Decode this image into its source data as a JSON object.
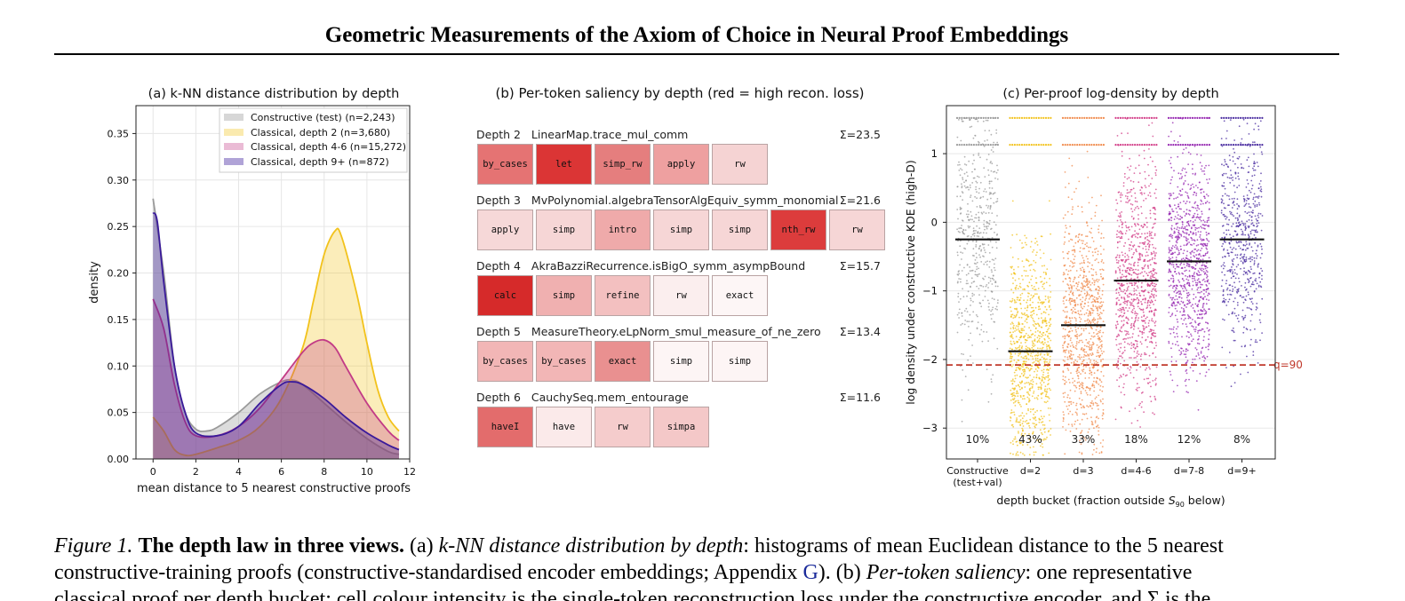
{
  "page": {
    "title": "Geometric Measurements of the Axiom of Choice in Neural Proof Embeddings"
  },
  "panel_a": {
    "title": "(a) k-NN distance distribution by depth",
    "xlabel": "mean distance to 5 nearest constructive proofs",
    "ylabel": "density",
    "xticks": [
      "0",
      "2",
      "4",
      "6",
      "8",
      "10",
      "12"
    ],
    "yticks": [
      "0.00",
      "0.05",
      "0.10",
      "0.15",
      "0.20",
      "0.25",
      "0.30",
      "0.35"
    ],
    "legend": [
      "Constructive (test) (n=2,243)",
      "Classical, depth 2 (n=3,680)",
      "Classical, depth 4-6 (n=15,272)",
      "Classical, depth 9+ (n=872)"
    ]
  },
  "panel_b": {
    "title": "(b) Per-token saliency by depth (red = high recon. loss)",
    "rows": [
      {
        "header": "Depth 2   LinearMap.trace_mul_comm",
        "sum": "Σ=23.5",
        "tokens": [
          {
            "label": "by_cases",
            "color": "#e57373"
          },
          {
            "label": "let",
            "color": "#db3535"
          },
          {
            "label": "simp_rw",
            "color": "#e57e7e"
          },
          {
            "label": "apply",
            "color": "#eea0a0"
          },
          {
            "label": "rw",
            "color": "#f5d3d3"
          }
        ]
      },
      {
        "header": "Depth 3   MvPolynomial.algebraTensorAlgEquiv_symm_monomial",
        "sum": "Σ=21.6",
        "tokens": [
          {
            "label": "apply",
            "color": "#f6d8d8"
          },
          {
            "label": "simp",
            "color": "#f6d6d6"
          },
          {
            "label": "intro",
            "color": "#efaaaa"
          },
          {
            "label": "simp",
            "color": "#f6d6d6"
          },
          {
            "label": "simp",
            "color": "#f6d6d6"
          },
          {
            "label": "nth_rw",
            "color": "#dc3c3c"
          },
          {
            "label": "rw",
            "color": "#f6d6d6"
          }
        ]
      },
      {
        "header": "Depth 4   AkraBazziRecurrence.isBigO_symm_asympBound",
        "sum": "Σ=15.7",
        "tokens": [
          {
            "label": "calc",
            "color": "#d62a2a"
          },
          {
            "label": "simp",
            "color": "#f0b0b0"
          },
          {
            "label": "refine",
            "color": "#f3c0c0"
          },
          {
            "label": "rw",
            "color": "#fbeeee"
          },
          {
            "label": "exact",
            "color": "#fdf6f6"
          }
        ]
      },
      {
        "header": "Depth 5   MeasureTheory.eLpNorm_smul_measure_of_ne_zero",
        "sum": "Σ=13.4",
        "tokens": [
          {
            "label": "by_cases",
            "color": "#f2b6b6"
          },
          {
            "label": "by_cases",
            "color": "#f2b6b6"
          },
          {
            "label": "exact",
            "color": "#e99090"
          },
          {
            "label": "simp",
            "color": "#fdf5f5"
          },
          {
            "label": "simp",
            "color": "#fdf5f5"
          }
        ]
      },
      {
        "header": "Depth 6   CauchySeq.mem_entourage",
        "sum": "Σ=11.6",
        "tokens": [
          {
            "label": "haveI",
            "color": "#e36c6c"
          },
          {
            "label": "have",
            "color": "#fbeaea"
          },
          {
            "label": "rw",
            "color": "#f5cccc"
          },
          {
            "label": "simpa",
            "color": "#f4c8c8"
          }
        ]
      }
    ]
  },
  "panel_c": {
    "title": "(c) Per-proof log-density by depth",
    "ylabel": "log density under constructive KDE (high-D)",
    "xlabel_prefix": "depth bucket  (fraction outside ",
    "xlabel_sym": "S",
    "xlabel_sub": "90",
    "xlabel_suffix": " below)",
    "threshold_label": "q=90",
    "yticks": [
      "1",
      "0",
      "−1",
      "−2",
      "−3"
    ],
    "buckets": [
      {
        "label": "Constructive",
        "label2": "(test+val)",
        "fraction": "10%",
        "median": -0.25,
        "color": "#9a9a9a"
      },
      {
        "label": "d=2",
        "label2": "",
        "fraction": "43%",
        "median": -1.88,
        "color": "#f2c21b"
      },
      {
        "label": "d=3",
        "label2": "",
        "fraction": "33%",
        "median": -1.5,
        "color": "#f08a4b"
      },
      {
        "label": "d=4-6",
        "label2": "",
        "fraction": "18%",
        "median": -0.85,
        "color": "#d23c87"
      },
      {
        "label": "d=7-8",
        "label2": "",
        "fraction": "12%",
        "median": -0.57,
        "color": "#9424b0"
      },
      {
        "label": "d=9+",
        "label2": "",
        "fraction": "8%",
        "median": -0.25,
        "color": "#4a2ca0"
      }
    ]
  },
  "caption": {
    "fig_label": "Figure 1.",
    "bold": "The depth law in three views.",
    "a_marker": "(a)",
    "a_title": "k-NN distance distribution by depth",
    "a_text": ": histograms of mean Euclidean distance to the 5 nearest",
    "line2_pre": "constructive-training proofs (constructive-standardised encoder embeddings; Appendix ",
    "appendix_link": "G",
    "line2_mid": "). (b) ",
    "b_title": "Per-token saliency",
    "b_text": ": one representative",
    "line3": "classical proof per depth bucket; cell colour intensity is the single-token reconstruction loss under the constructive encoder, and Σ is the"
  },
  "chart_data": [
    {
      "type": "area",
      "title": "(a) k-NN distance distribution by depth",
      "xlabel": "mean distance to 5 nearest constructive proofs",
      "ylabel": "density",
      "xlim": [
        -0.8,
        12
      ],
      "ylim": [
        0,
        0.38
      ],
      "grid": true,
      "legend_position": "top-right",
      "series": [
        {
          "name": "Constructive (test) (n=2,243)",
          "color": "#9a9a9a",
          "x": [
            0,
            0.5,
            1,
            1.5,
            2,
            2.5,
            3,
            4,
            5,
            6,
            6.5,
            7,
            8,
            9,
            10,
            11,
            11.5
          ],
          "y": [
            0.28,
            0.2,
            0.1,
            0.05,
            0.032,
            0.03,
            0.034,
            0.05,
            0.07,
            0.083,
            0.085,
            0.08,
            0.06,
            0.04,
            0.022,
            0.008,
            0.005
          ]
        },
        {
          "name": "Classical, depth 2 (n=3,680)",
          "color": "#f2c21b",
          "x": [
            0,
            0.5,
            1,
            1.5,
            2,
            3,
            4,
            5,
            6,
            7,
            7.5,
            8,
            8.5,
            8.8,
            9.5,
            10,
            10.5,
            11,
            11.5
          ],
          "y": [
            0.045,
            0.03,
            0.01,
            0.004,
            0.005,
            0.012,
            0.02,
            0.035,
            0.065,
            0.12,
            0.17,
            0.22,
            0.245,
            0.24,
            0.18,
            0.125,
            0.075,
            0.045,
            0.03
          ]
        },
        {
          "name": "Classical, depth 4-6 (n=15,272)",
          "color": "#c23b86",
          "x": [
            0,
            0.5,
            1,
            1.5,
            2,
            3,
            4,
            5,
            6,
            7,
            7.5,
            8,
            8.5,
            9,
            10,
            11,
            11.5
          ],
          "y": [
            0.172,
            0.14,
            0.08,
            0.04,
            0.025,
            0.025,
            0.035,
            0.055,
            0.085,
            0.115,
            0.125,
            0.128,
            0.12,
            0.1,
            0.06,
            0.03,
            0.02
          ]
        },
        {
          "name": "Classical, depth 9+ (n=872)",
          "color": "#3a1a9a",
          "x": [
            0,
            0.2,
            0.5,
            1,
            1.5,
            2,
            3,
            4,
            5,
            6,
            6.5,
            7,
            8,
            9,
            10,
            11,
            11.5
          ],
          "y": [
            0.265,
            0.255,
            0.19,
            0.1,
            0.05,
            0.028,
            0.025,
            0.035,
            0.06,
            0.08,
            0.083,
            0.08,
            0.065,
            0.045,
            0.028,
            0.015,
            0.01
          ]
        }
      ]
    },
    {
      "type": "scatter",
      "title": "(c) Per-proof log-density by depth",
      "xlabel": "depth bucket  (fraction outside S90 below)",
      "ylabel": "log density under constructive KDE (high-D)",
      "ylim": [
        -3.45,
        1.7
      ],
      "threshold": -2.08,
      "categories": [
        "Constructive (test+val)",
        "d=2",
        "d=3",
        "d=4-6",
        "d=7-8",
        "d=9+"
      ],
      "medians": [
        -0.25,
        -1.88,
        -1.5,
        -0.85,
        -0.57,
        -0.25
      ],
      "fractions_outside": [
        "10%",
        "43%",
        "33%",
        "18%",
        "12%",
        "8%"
      ]
    }
  ]
}
